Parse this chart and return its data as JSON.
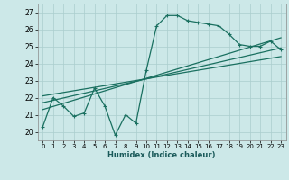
{
  "xlabel": "Humidex (Indice chaleur)",
  "xlim": [
    -0.5,
    23.5
  ],
  "ylim": [
    19.5,
    27.5
  ],
  "yticks": [
    20,
    21,
    22,
    23,
    24,
    25,
    26,
    27
  ],
  "xticks": [
    0,
    1,
    2,
    3,
    4,
    5,
    6,
    7,
    8,
    9,
    10,
    11,
    12,
    13,
    14,
    15,
    16,
    17,
    18,
    19,
    20,
    21,
    22,
    23
  ],
  "bg_color": "#cce8e8",
  "grid_color": "#aacece",
  "line_color": "#1a7060",
  "line1_x": [
    0,
    1,
    2,
    3,
    4,
    5,
    6,
    7,
    8,
    9,
    10,
    11,
    12,
    13,
    14,
    15,
    16,
    17,
    18,
    19,
    20,
    21,
    22,
    23
  ],
  "line1_y": [
    20.3,
    22.0,
    21.5,
    20.9,
    21.1,
    22.55,
    21.5,
    19.8,
    21.0,
    20.5,
    23.6,
    26.2,
    26.8,
    26.8,
    26.5,
    26.4,
    26.3,
    26.2,
    25.7,
    25.1,
    25.0,
    25.0,
    25.3,
    24.8
  ],
  "line2_x": [
    0,
    23
  ],
  "line2_y": [
    21.3,
    25.5
  ],
  "line3_x": [
    0,
    23
  ],
  "line3_y": [
    21.7,
    24.9
  ],
  "line4_x": [
    0,
    23
  ],
  "line4_y": [
    22.1,
    24.4
  ]
}
